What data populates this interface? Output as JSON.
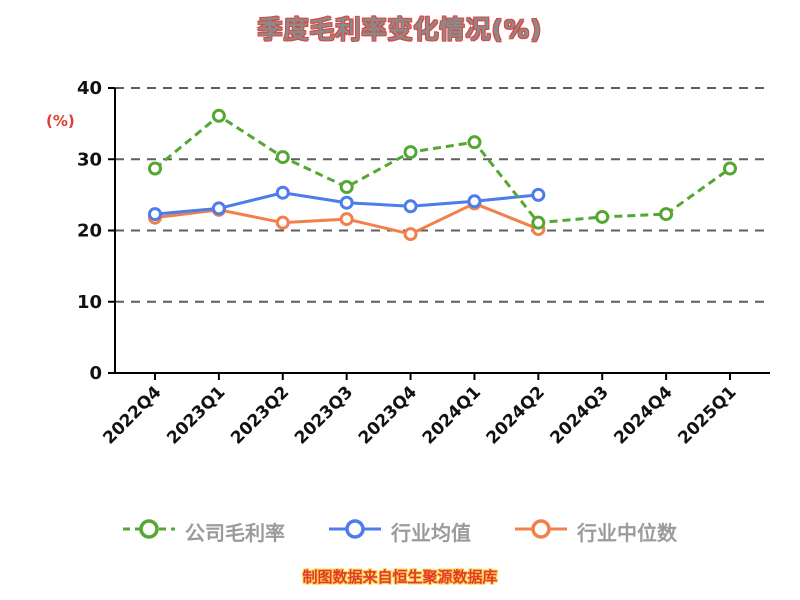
{
  "title": "季度毛利率变化情况(%)",
  "y_axis_unit": "(%)",
  "footer_note": "制图数据来自恒生聚源数据库",
  "colors": {
    "company": "#55a734",
    "industry_avg": "#4d7ceb",
    "industry_median": "#f2804b",
    "axis": "#000000",
    "grid": "#5e5e5e",
    "title_fill": "#8a8a8a",
    "title_outline": "#e0453f",
    "accent_red": "#e23b2f",
    "highlight_yellow": "#ffd24d",
    "legend_text": "#9b9b9b"
  },
  "chart_data": {
    "type": "line",
    "title": "季度毛利率变化情况(%)",
    "xlabel": "",
    "ylabel": "(%)",
    "ylim": [
      0,
      40
    ],
    "yticks": [
      0,
      10,
      20,
      30,
      40
    ],
    "grid": "horizontal-dashed",
    "legend_position": "bottom",
    "categories": [
      "2022Q4",
      "2023Q1",
      "2023Q2",
      "2023Q3",
      "2023Q4",
      "2024Q1",
      "2024Q2",
      "2024Q3",
      "2024Q4",
      "2025Q1"
    ],
    "series": [
      {
        "name": "公司毛利率",
        "color": "#55a734",
        "dashed": true,
        "values": [
          28.7,
          36.1,
          30.3,
          26.1,
          31.0,
          32.4,
          21.1,
          21.9,
          22.3,
          28.7
        ]
      },
      {
        "name": "行业均值",
        "color": "#4d7ceb",
        "dashed": false,
        "values": [
          22.3,
          23.1,
          25.3,
          23.9,
          23.4,
          24.1,
          25.0,
          null,
          null,
          null
        ]
      },
      {
        "name": "行业中位数",
        "color": "#f2804b",
        "dashed": false,
        "values": [
          21.8,
          22.9,
          21.1,
          21.6,
          19.5,
          23.8,
          20.2,
          null,
          null,
          null
        ]
      }
    ]
  }
}
